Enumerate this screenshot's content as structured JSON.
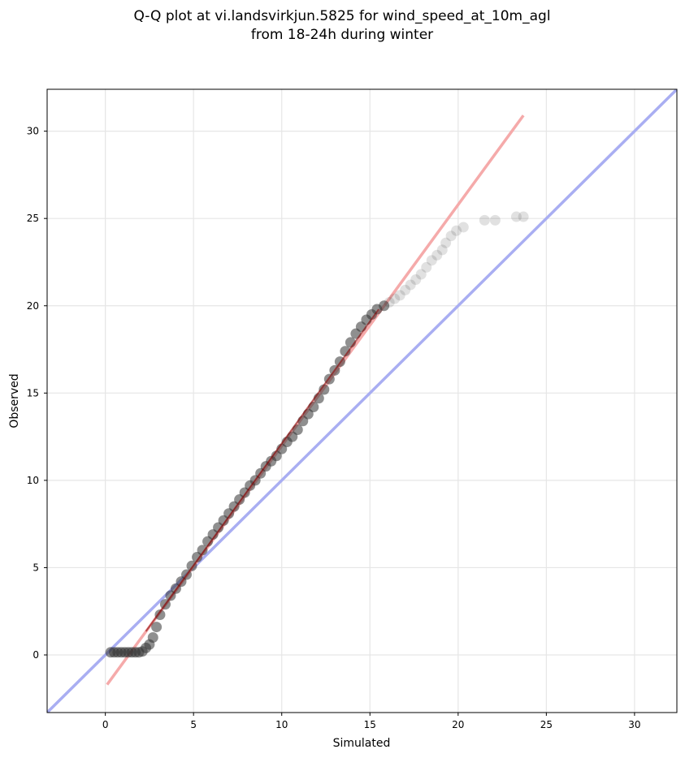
{
  "chart_data": {
    "type": "scatter",
    "title_line1": "Q-Q plot at vi.landsvirkjun.5825 for wind_speed_at_10m_agl",
    "title_line2": "from 18-24h during winter",
    "xlabel": "Simulated",
    "ylabel": "Observed",
    "xlim": [
      -3.3,
      32.4
    ],
    "ylim": [
      -3.3,
      32.4
    ],
    "xticks": [
      0,
      5,
      10,
      15,
      20,
      25,
      30
    ],
    "yticks": [
      0,
      5,
      10,
      15,
      20,
      25,
      30
    ],
    "grid": true,
    "colors": {
      "points": "#333333",
      "identity_line": "#a9aef2",
      "fit_line": "#f5aaaa",
      "fit_line_dark": "#8b0000"
    },
    "identity_line": {
      "x": [
        -3.3,
        32.4
      ],
      "y": [
        -3.3,
        32.4
      ]
    },
    "fit_line": {
      "x": [
        0.1,
        23.7
      ],
      "y": [
        -1.7,
        30.9
      ]
    },
    "points": [
      [
        0.3,
        0.15
      ],
      [
        0.5,
        0.15
      ],
      [
        0.7,
        0.15
      ],
      [
        0.9,
        0.15
      ],
      [
        1.1,
        0.15
      ],
      [
        1.3,
        0.15
      ],
      [
        1.5,
        0.15
      ],
      [
        1.7,
        0.15
      ],
      [
        1.9,
        0.15
      ],
      [
        2.1,
        0.2
      ],
      [
        2.3,
        0.4
      ],
      [
        2.5,
        0.6
      ],
      [
        2.7,
        1.0
      ],
      [
        2.9,
        1.6
      ],
      [
        3.1,
        2.3
      ],
      [
        3.4,
        2.9
      ],
      [
        3.7,
        3.4
      ],
      [
        4.0,
        3.8
      ],
      [
        4.3,
        4.2
      ],
      [
        4.6,
        4.6
      ],
      [
        4.9,
        5.1
      ],
      [
        5.2,
        5.6
      ],
      [
        5.5,
        6.0
      ],
      [
        5.8,
        6.5
      ],
      [
        6.1,
        6.9
      ],
      [
        6.4,
        7.3
      ],
      [
        6.7,
        7.7
      ],
      [
        7.0,
        8.1
      ],
      [
        7.3,
        8.5
      ],
      [
        7.6,
        8.9
      ],
      [
        7.9,
        9.3
      ],
      [
        8.2,
        9.7
      ],
      [
        8.5,
        10.0
      ],
      [
        8.8,
        10.4
      ],
      [
        9.1,
        10.8
      ],
      [
        9.4,
        11.1
      ],
      [
        9.7,
        11.4
      ],
      [
        10.0,
        11.8
      ],
      [
        10.3,
        12.2
      ],
      [
        10.6,
        12.5
      ],
      [
        10.9,
        12.9
      ],
      [
        11.2,
        13.4
      ],
      [
        11.5,
        13.8
      ],
      [
        11.8,
        14.2
      ],
      [
        12.1,
        14.7
      ],
      [
        12.4,
        15.2
      ],
      [
        12.7,
        15.8
      ],
      [
        13.0,
        16.3
      ],
      [
        13.3,
        16.8
      ],
      [
        13.6,
        17.4
      ],
      [
        13.9,
        17.9
      ],
      [
        14.2,
        18.4
      ],
      [
        14.5,
        18.8
      ],
      [
        14.8,
        19.2
      ],
      [
        15.1,
        19.5
      ],
      [
        15.4,
        19.8
      ],
      [
        15.8,
        20.0
      ],
      [
        16.1,
        20.2
      ],
      [
        16.4,
        20.4
      ],
      [
        16.7,
        20.6
      ],
      [
        17.0,
        20.9
      ],
      [
        17.3,
        21.2
      ],
      [
        17.6,
        21.5
      ],
      [
        17.9,
        21.8
      ],
      [
        18.2,
        22.2
      ],
      [
        18.5,
        22.6
      ],
      [
        18.8,
        22.9
      ],
      [
        19.1,
        23.2
      ],
      [
        19.3,
        23.6
      ],
      [
        19.6,
        24.0
      ],
      [
        19.9,
        24.3
      ],
      [
        20.3,
        24.5
      ],
      [
        21.5,
        24.9
      ],
      [
        22.1,
        24.9
      ],
      [
        23.3,
        25.1
      ],
      [
        23.7,
        25.1
      ]
    ]
  }
}
